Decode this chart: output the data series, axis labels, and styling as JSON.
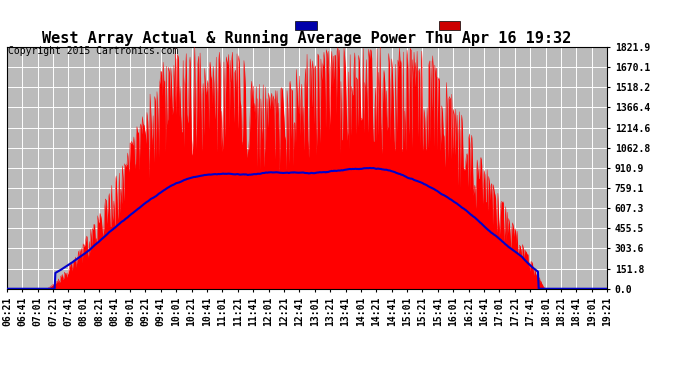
{
  "title": "West Array Actual & Running Average Power Thu Apr 16 19:32",
  "copyright": "Copyright 2015 Cartronics.com",
  "yticks": [
    0.0,
    151.8,
    303.6,
    455.5,
    607.3,
    759.1,
    910.9,
    1062.8,
    1214.6,
    1366.4,
    1518.2,
    1670.1,
    1821.9
  ],
  "ymax": 1821.9,
  "ymin": 0.0,
  "bg_color": "#ffffff",
  "plot_bg_color": "#bbbbbb",
  "grid_color": "#ffffff",
  "fill_color": "#ff0000",
  "line_color": "#0000cc",
  "legend_avg_bg": "#0000aa",
  "legend_west_bg": "#cc0000",
  "title_fontsize": 11,
  "tick_fontsize": 7,
  "copyright_fontsize": 7,
  "start_time": "06:21",
  "end_time": "19:21"
}
